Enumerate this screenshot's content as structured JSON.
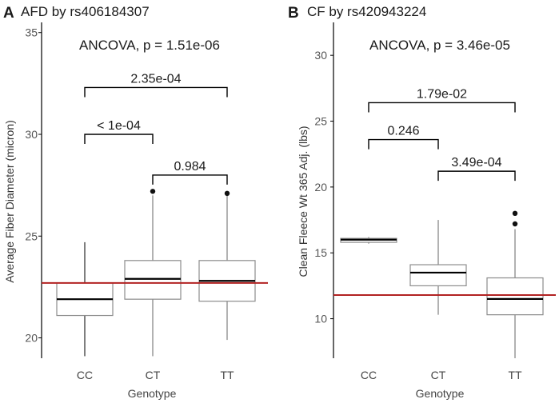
{
  "chart_data": [
    {
      "type": "box",
      "panel_letter": "A",
      "title": "AFD by rs406184307",
      "test_label": "ANCOVA, p = 1.51e-06",
      "xlabel": "Genotype",
      "ylabel": "Average Fiber Diameter (micron)",
      "ylim": [
        19,
        35.5
      ],
      "yticks": [
        20,
        25,
        30,
        35
      ],
      "categories": [
        "CC",
        "CT",
        "TT"
      ],
      "boxes": [
        {
          "category": "CC",
          "min": 19.1,
          "q1": 21.1,
          "median": 21.9,
          "q3": 22.7,
          "max": 24.7,
          "outliers": []
        },
        {
          "category": "CT",
          "min": 19.1,
          "q1": 21.9,
          "median": 22.9,
          "q3": 23.8,
          "max": 27.0,
          "outliers": [
            27.2
          ]
        },
        {
          "category": "TT",
          "min": 19.9,
          "q1": 21.8,
          "median": 22.8,
          "q3": 23.8,
          "max": 27.0,
          "outliers": [
            27.1
          ]
        }
      ],
      "reference_line": 22.7,
      "comparisons": [
        {
          "groups": [
            "CC",
            "TT"
          ],
          "label": "2.35e-04",
          "y": 32.3
        },
        {
          "groups": [
            "CC",
            "CT"
          ],
          "label": "< 1e-04",
          "y": 30.0
        },
        {
          "groups": [
            "CT",
            "TT"
          ],
          "label": "0.984",
          "y": 28.0
        }
      ]
    },
    {
      "type": "box",
      "panel_letter": "B",
      "title": "CF by rs420943224",
      "test_label": "ANCOVA, p = 3.46e-05",
      "xlabel": "Genotype",
      "ylabel": "Clean Fleece Wt 365 Adj. (lbs)",
      "ylim": [
        7,
        32.5
      ],
      "yticks": [
        10,
        15,
        20,
        25,
        30
      ],
      "categories": [
        "CC",
        "CT",
        "TT"
      ],
      "boxes": [
        {
          "category": "CC",
          "min": 15.7,
          "q1": 15.8,
          "median": 16.0,
          "q3": 16.1,
          "max": 16.2,
          "outliers": []
        },
        {
          "category": "CT",
          "min": 10.3,
          "q1": 12.5,
          "median": 13.5,
          "q3": 14.1,
          "max": 17.5,
          "outliers": []
        },
        {
          "category": "TT",
          "min": 7.0,
          "q1": 10.3,
          "median": 11.5,
          "q3": 13.1,
          "max": 16.8,
          "outliers": [
            17.2,
            18.0
          ]
        }
      ],
      "reference_line": 11.8,
      "comparisons": [
        {
          "groups": [
            "CC",
            "TT"
          ],
          "label": "1.79e-02",
          "y": 26.4
        },
        {
          "groups": [
            "CC",
            "CT"
          ],
          "label": "0.246",
          "y": 23.6
        },
        {
          "groups": [
            "CT",
            "TT"
          ],
          "label": "3.49e-04",
          "y": 21.2
        }
      ]
    }
  ],
  "colors": {
    "reference_line": "#b22222",
    "box_stroke": "#8c8c8c",
    "median": "#000000",
    "whisker": "#7f7f7f",
    "text": "#1a1a1a"
  }
}
